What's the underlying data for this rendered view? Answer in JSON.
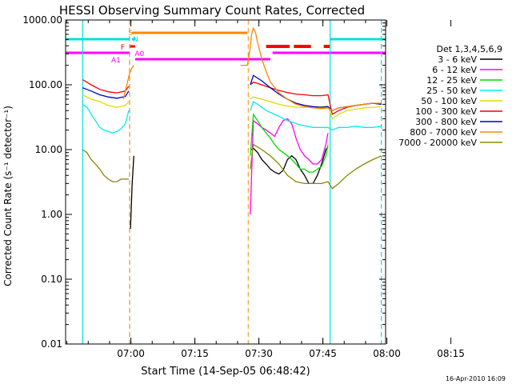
{
  "chart_data": {
    "type": "line",
    "title": "HESSI Observing Summary Count Rates, Corrected",
    "ylabel": "Corrected Count Rate (s⁻¹ detector⁻¹)",
    "xlabel": "Start Time (14-Sep-05 06:48:42)",
    "x_ticks": [
      "07:00",
      "07:15",
      "07:30",
      "07:45",
      "08:00",
      "08:15"
    ],
    "y_ticks": [
      "0.01",
      "0.10",
      "1.00",
      "10.00",
      "100.00",
      "1000.00"
    ],
    "ylim": [
      0.01,
      1000
    ],
    "y_scale": "log",
    "xlim_minutes": [
      -4,
      71
    ],
    "legend_title": "Det 1,3,4,5,6,9",
    "legend_position": "right",
    "footer": "16-Apr-2010 16:09",
    "flag_labels": [
      "S",
      "F",
      "A0",
      "A1",
      "N"
    ],
    "flag_colors": {
      "S": "#ff8800",
      "F": "#ff0000",
      "A": "#ff00ff",
      "N": "#00e0e0"
    },
    "night_lines_minutes": [
      0,
      11,
      58,
      70
    ],
    "saa_lines_minutes": [
      11,
      38.8
    ],
    "series": [
      {
        "name": "3 - 6 keV",
        "color": "#000000",
        "x": [
          11.2,
          11.6,
          12,
          39.5,
          40,
          41,
          42,
          43,
          44,
          45,
          46,
          47,
          48,
          49,
          50,
          51,
          52,
          53,
          54,
          55,
          56,
          57,
          57.5
        ],
        "y": [
          0.6,
          3,
          8,
          10,
          10.5,
          9,
          7,
          6,
          5,
          4.5,
          4.2,
          4.8,
          7,
          8,
          7,
          5,
          4,
          3,
          3,
          4,
          6,
          10,
          11
        ]
      },
      {
        "name": "6 - 12 keV",
        "color": "#ff00ff",
        "x": [
          39.3,
          40,
          41,
          42,
          43,
          44,
          45,
          46,
          47,
          48,
          49,
          50,
          51,
          52,
          53,
          54,
          55,
          56,
          57,
          57.5
        ],
        "y": [
          1,
          28,
          25,
          22,
          20,
          18,
          16,
          22,
          28,
          30,
          25,
          15,
          10,
          8,
          7,
          6,
          6,
          7,
          12,
          18
        ]
      },
      {
        "name": "12 - 25 keV",
        "color": "#00dd00",
        "x": [
          39.3,
          40,
          41,
          42,
          43,
          44,
          45,
          46,
          47,
          48,
          49,
          50,
          51,
          52,
          53,
          54,
          55,
          56,
          57,
          57.5
        ],
        "y": [
          8,
          35,
          28,
          22,
          18,
          15,
          12,
          10,
          9,
          8,
          7,
          6,
          5,
          5,
          4.5,
          4.5,
          5,
          5.5,
          8,
          12
        ]
      },
      {
        "name": "25 - 50 keV",
        "color": "#00eeee",
        "x": [
          0,
          1,
          2,
          3,
          4,
          5,
          6,
          7,
          8,
          9,
          10,
          10.8,
          39.3,
          40,
          41,
          42,
          43,
          45,
          48,
          51,
          54,
          57.5,
          58.5,
          60,
          62,
          64,
          66,
          68,
          70
        ],
        "y": [
          50,
          45,
          35,
          28,
          22,
          20,
          19,
          18,
          19,
          21,
          25,
          40,
          40,
          55,
          50,
          45,
          40,
          35,
          28,
          24,
          22,
          22,
          20,
          22,
          22,
          23,
          22,
          22,
          23
        ]
      },
      {
        "name": "50 - 100 keV",
        "color": "#dddd00",
        "x": [
          0,
          2,
          4,
          6,
          8,
          10,
          10.8,
          39.3,
          40,
          42,
          44,
          46,
          48,
          50,
          52,
          54,
          56,
          57.5,
          58.5,
          60,
          62,
          64,
          66,
          68,
          70
        ],
        "y": [
          70,
          60,
          55,
          48,
          45,
          48,
          55,
          60,
          65,
          60,
          55,
          50,
          47,
          45,
          45,
          45,
          46,
          47,
          30,
          35,
          40,
          42,
          44,
          45,
          46
        ]
      },
      {
        "name": "100 - 300 keV",
        "color": "#ff0000",
        "x": [
          0,
          2,
          4,
          6,
          8,
          10,
          10.8,
          39.3,
          40,
          42,
          44,
          46,
          48,
          50,
          52,
          54,
          56,
          57.5,
          58.5,
          60,
          62,
          64,
          66,
          68,
          70
        ],
        "y": [
          120,
          100,
          85,
          78,
          75,
          80,
          95,
          100,
          110,
          100,
          90,
          82,
          76,
          72,
          70,
          68,
          68,
          70,
          35,
          40,
          45,
          48,
          50,
          52,
          50
        ]
      },
      {
        "name": "300 - 800 keV",
        "color": "#0000cc",
        "x": [
          0,
          2,
          4,
          6,
          8,
          10,
          10.8,
          39.3,
          40,
          42,
          44,
          46,
          48,
          50,
          52,
          54,
          56,
          57.5,
          58.5,
          60,
          62,
          64,
          66,
          68,
          70
        ],
        "y": [
          90,
          80,
          70,
          65,
          62,
          66,
          80,
          100,
          140,
          115,
          90,
          72,
          60,
          52,
          48,
          46,
          45,
          46,
          40,
          44,
          46,
          48,
          50,
          52,
          50
        ]
      },
      {
        "name": "800 - 7000 keV",
        "color": "#ff8800",
        "x": [
          9.5,
          10,
          10.5,
          11,
          11.5,
          12,
          37,
          38,
          38.6,
          39.2,
          39.6,
          40,
          40.5,
          41,
          42,
          43,
          44,
          46,
          48,
          50,
          52,
          54,
          56,
          57.5,
          58.5,
          60,
          62,
          64,
          66,
          68,
          70
        ],
        "y": [
          60,
          80,
          110,
          150,
          180,
          200,
          200,
          200,
          200,
          350,
          600,
          750,
          650,
          450,
          250,
          160,
          110,
          75,
          60,
          50,
          46,
          44,
          43,
          44,
          40,
          44,
          46,
          48,
          50,
          52,
          52
        ]
      },
      {
        "name": "7000 - 20000 keV",
        "color": "#888800",
        "x": [
          0,
          1,
          2,
          3,
          4,
          5,
          6,
          7,
          8,
          9,
          10,
          10.8,
          39.3,
          40,
          42,
          44,
          46,
          48,
          50,
          52,
          54,
          56,
          57.5,
          58.5,
          60,
          62,
          64,
          66,
          68,
          70
        ],
        "y": [
          10,
          9,
          7,
          6,
          5,
          4,
          3.5,
          3.2,
          3.2,
          3.5,
          3.5,
          3.5,
          5,
          12,
          10,
          8,
          6,
          4,
          3.2,
          3,
          3,
          3,
          3.2,
          2.5,
          3,
          4,
          5,
          6,
          7,
          8
        ]
      }
    ]
  }
}
